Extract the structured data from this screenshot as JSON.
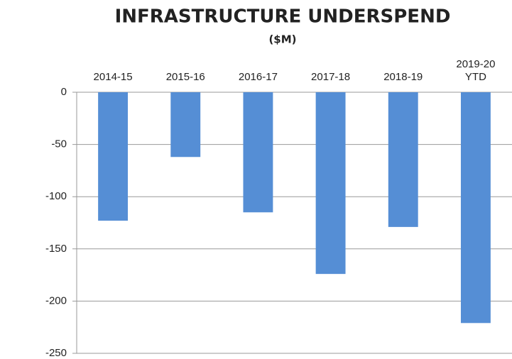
{
  "chart_data": {
    "type": "bar",
    "title": "INFRASTRUCTURE UNDERSPEND",
    "subtitle": "($M)",
    "categories": [
      "2014-15",
      "2015-16",
      "2016-17",
      "2017-18",
      "2018-19",
      "2019-20 YTD"
    ],
    "values": [
      -123,
      -62,
      -115,
      -174,
      -129,
      -221
    ],
    "color": "#558ed5",
    "ylim": [
      -250,
      0
    ],
    "yticks": [
      0,
      -50,
      -100,
      -150,
      -200,
      -250
    ],
    "grid": true
  }
}
